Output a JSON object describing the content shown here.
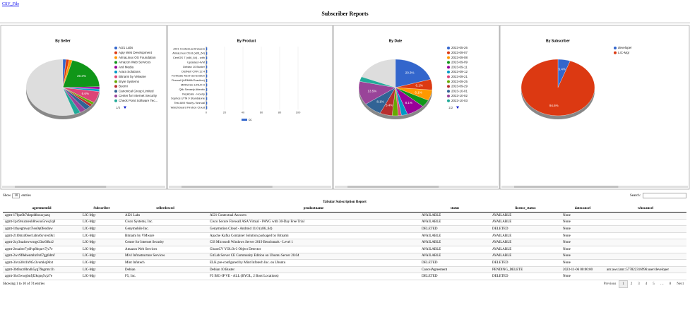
{
  "header": {
    "link": "CSV_File",
    "title": "Subscriber Reports"
  },
  "charts": [
    {
      "type": "pie",
      "title": "By Seller",
      "categories": [
        "AI21 Labs",
        "Ajay Web Development",
        "AlmaLinux OS Foundation",
        "Amazon Web Services",
        "Anil Media",
        "Arara Solutions",
        "Bitnami by VMware",
        "Bryte Systems",
        "Buomi",
        "Canonical Group Limited",
        "Center for Internet Security",
        "Check Point Software Tec..."
      ],
      "values": [
        1.4,
        1.4,
        1.4,
        20.3,
        1.4,
        1.4,
        6.6,
        1.4,
        1.4,
        2.7,
        2.7,
        2.7
      ],
      "value_labels": [
        null,
        null,
        null,
        "20.3%",
        null,
        null,
        "6.6%",
        null,
        null,
        null,
        null,
        null
      ],
      "colors": [
        "#3366cc",
        "#dc3912",
        "#ff9900",
        "#109618",
        "#990099",
        "#0099c6",
        "#dd4477",
        "#66aa00",
        "#b82e2e",
        "#316395",
        "#994499",
        "#22aa99"
      ],
      "legend_page": "1/4"
    },
    {
      "type": "bar",
      "title": "By Product",
      "categories": [
        "AI21 Contextual Answers",
        "AlmaLinux OS 8 (x86_64)",
        "CentOS 7 (x86_64) - with",
        "Updates HVM",
        "Debian 10 Buster",
        "DistNet/ CNN 12.4",
        "FortiGate Next-Generation",
        "Firewall (ARM64/Graviton)",
        "MIRACLE LINUX 9",
        "Qlik Sensely Attentiv",
        "Replicate - Hourly",
        "Sophos UTM 9 Standalone",
        "Test AMI Hourly / Annual",
        "WatchGuard Firebox Cloud"
      ],
      "series": [
        {
          "name": "cc",
          "color": "#3366cc",
          "values": [
            1,
            1,
            1,
            1,
            1,
            1,
            1,
            1,
            1,
            1,
            1,
            1,
            1,
            1
          ]
        }
      ],
      "xlim": [
        0,
        100
      ],
      "xticks": [
        0,
        20,
        40,
        60,
        80,
        100
      ]
    },
    {
      "type": "pie",
      "title": "By Date",
      "categories": [
        "2023-05-26",
        "2023-09-07",
        "2023-09-08",
        "2023-09-09",
        "2023-09-11",
        "2023-09-12",
        "2023-09-21",
        "2023-09-25",
        "2023-09-29",
        "2023-10-01",
        "2023-10-02",
        "2023-10-03"
      ],
      "values": [
        20.3,
        6.1,
        6.1,
        4.1,
        8.1,
        2.7,
        1.4,
        2.7,
        5.4,
        8.1,
        13.5,
        2.7
      ],
      "value_labels": [
        "20.3%",
        "6.1%",
        "6.1%",
        null,
        "8.1%",
        null,
        null,
        null,
        "5.4%",
        "8.1%",
        "13.5%",
        null
      ],
      "colors": [
        "#3366cc",
        "#dc3912",
        "#ff9900",
        "#109618",
        "#990099",
        "#0099c6",
        "#dd4477",
        "#66aa00",
        "#b82e2e",
        "#316395",
        "#994499",
        "#22aa99"
      ],
      "legend_page": "1/2"
    },
    {
      "type": "pie",
      "title": "By Subscriber",
      "categories": [
        "developer",
        "LIC-Mgr"
      ],
      "values": [
        5.4,
        94.6
      ],
      "value_labels": [
        "5.4%",
        "94.6%"
      ],
      "colors": [
        "#3366cc",
        "#dc3912"
      ]
    }
  ],
  "table": {
    "show_label": "Show",
    "length": "10",
    "entries_label": "entries",
    "search_label": "Search:",
    "caption": "Tabular Subscription Report",
    "columns": [
      "agreementId",
      "Subscriber",
      "sellerdescrd",
      "productname",
      "status",
      "license_status",
      "datecancel",
      "whocancel"
    ],
    "rows": [
      [
        "agmt-17fpu0b7ektpd4bouxyazq",
        "LIC-Mgr",
        "AI21 Labs",
        "AI21 Contextual Answers",
        "AVAILABLE",
        "AVAILABLE",
        "None",
        null
      ],
      [
        "agmt-1px9rsuzneuh8nwuo5rwq1q8",
        "LIC-Mgr",
        "Cisco Systems, Inc.",
        "Cisco Secure Firewall ASA Virtual - PAYG with 30-Day Free Trial",
        "AVAILABLE",
        "AVAILABLE",
        "None",
        null
      ],
      [
        "agmt-1thyegmwyt7ieo0q0feoduw",
        "LIC-Mgr",
        "Genymobile Inc.",
        "Genymotion Cloud - Android 11.0 (x86_64)",
        "DELETED",
        "DELETED",
        "None",
        null
      ],
      [
        "agmt-21l0mzd0oer1abnr6yvreu9k1",
        "LIC-Mgr",
        "Bitnami by VMware",
        "Apache Kafka Container Solution packaged by Bitnami",
        "AVAILABLE",
        "AVAILABLE",
        "None",
        null
      ],
      [
        "agmt-2zy3na4owwrnge23zr6l8zr2",
        "LIC-Mgr",
        "Center for Internet Security",
        "CIS Microsoft Windows Server 2019 Benchmark - Level 1",
        "AVAILABLE",
        "AVAILABLE",
        "None",
        null
      ],
      [
        "agmt-2eoalrer7ydfvp8bqurv7jv7e",
        "LIC-Mgr",
        "Amazon Web Services",
        "GluonCV YOLOv3 Object Detector",
        "AVAILABLE",
        "AVAILABLE",
        "None",
        null
      ],
      [
        "agmt-2wv9f8ehenmbz0x67gg6dmf",
        "LIC-Mgr",
        "Mivl Infrastructure Services",
        "GitLab Server CE Community Edition on Ubuntu Server 20.04",
        "AVAILABLE",
        "AVAILABLE",
        "None",
        null
      ],
      [
        "agmt-3ivta3041h9t5c3vomkq96xt",
        "LIC-Mgr",
        "Mint Infotech",
        "ELK pre-configured by Mint Infotech Inc. on Ubuntu",
        "DELETED",
        "DELETED",
        "None",
        null
      ],
      [
        "agmt-3bt9acz8bn4h5yg79agrmc1h",
        "LIC-Mgr",
        "Debian",
        "Debian 10 Buster",
        "CancelAgreement",
        "PENDING_DELETE",
        "2023-11-06 00:00:00",
        "arn:aws:iam::577822316996:user/developer"
      ],
      [
        "agmt-3hx5wwgbnfjf2kqnq5vjz7e",
        "LIC-Mgr",
        "F5, Inc.",
        "F5 BIG-IP VE - ALL (BYOL, 2 Boot Locations)",
        "DELETED",
        "DELETED",
        "None",
        null
      ]
    ],
    "info": "Showing 1 to 10 of 74 entries",
    "pagination": [
      "Previous",
      "1",
      "2",
      "3",
      "4",
      "5",
      "…",
      "8",
      "Next"
    ]
  }
}
